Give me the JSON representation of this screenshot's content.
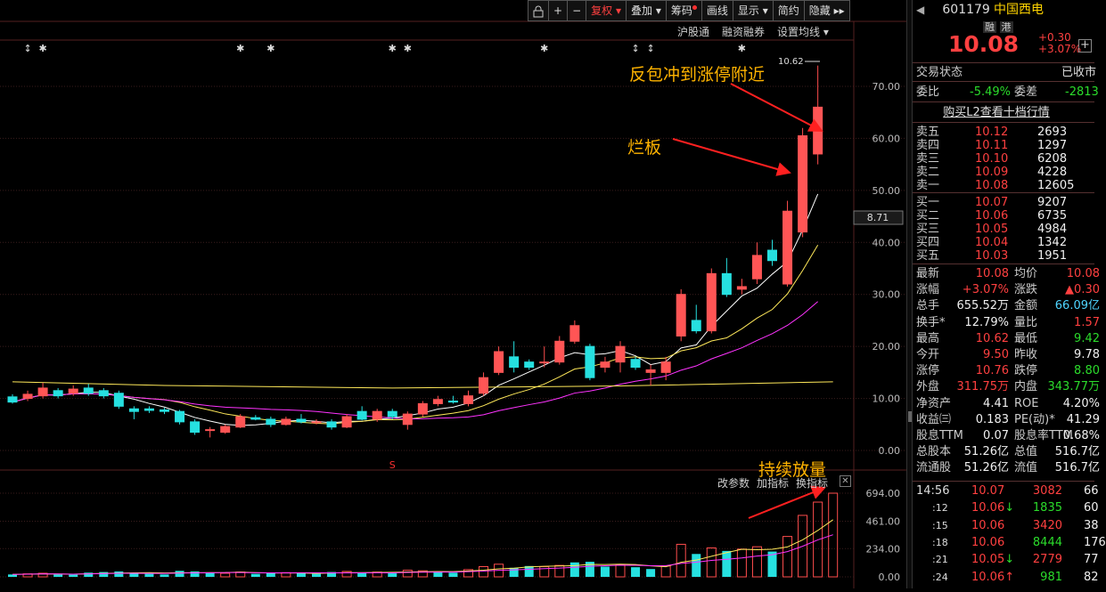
{
  "toolbar": {
    "buttons": [
      "复权",
      "叠加",
      "筹码",
      "画线",
      "显示",
      "简约",
      "隐藏"
    ],
    "active_button": "复权"
  },
  "subbar": [
    "沪股通",
    "融资融券",
    "设置均线"
  ],
  "price_axis": [
    "70.00",
    "60.00",
    "50.00",
    "40.00",
    "30.00",
    "20.00",
    "10.00",
    "0.00"
  ],
  "current_price_tag": "8.71",
  "high_label": "10.62",
  "volume_axis": [
    "694.00",
    "461.00",
    "234.00",
    "0.00"
  ],
  "indicator_bar": [
    "改参数",
    "加指标",
    "换指标"
  ],
  "annotations": {
    "limit_up": "反包冲到涨停附近",
    "board": "烂板",
    "volume": "持续放量"
  },
  "chart_data": {
    "type": "candlestick",
    "ylim": [
      0,
      75
    ],
    "candles": [
      {
        "o": 10.3,
        "c": 9.3,
        "h": 10.8,
        "l": 9.0
      },
      {
        "o": 10.0,
        "c": 10.8,
        "h": 11.5,
        "l": 9.5
      },
      {
        "o": 10.5,
        "c": 12.0,
        "h": 13.0,
        "l": 10.0
      },
      {
        "o": 11.5,
        "c": 10.5,
        "h": 12.0,
        "l": 10.0
      },
      {
        "o": 11.0,
        "c": 11.8,
        "h": 12.5,
        "l": 10.5
      },
      {
        "o": 12.0,
        "c": 11.0,
        "h": 12.8,
        "l": 10.5
      },
      {
        "o": 11.5,
        "c": 10.5,
        "h": 12.0,
        "l": 10.0
      },
      {
        "o": 11.0,
        "c": 8.5,
        "h": 11.5,
        "l": 8.0
      },
      {
        "o": 8.0,
        "c": 7.5,
        "h": 8.5,
        "l": 6.0
      },
      {
        "o": 8.0,
        "c": 7.7,
        "h": 8.5,
        "l": 7.2
      },
      {
        "o": 7.8,
        "c": 7.5,
        "h": 8.2,
        "l": 7.0
      },
      {
        "o": 7.5,
        "c": 5.5,
        "h": 7.8,
        "l": 5.0
      },
      {
        "o": 5.5,
        "c": 3.5,
        "h": 6.0,
        "l": 3.0
      },
      {
        "o": 4.0,
        "c": 4.0,
        "h": 4.5,
        "l": 2.5
      },
      {
        "o": 3.5,
        "c": 4.6,
        "h": 5.0,
        "l": 3.2
      },
      {
        "o": 4.5,
        "c": 6.5,
        "h": 7.0,
        "l": 4.3
      },
      {
        "o": 6.3,
        "c": 6.0,
        "h": 6.8,
        "l": 5.8
      },
      {
        "o": 6.0,
        "c": 5.0,
        "h": 6.5,
        "l": 4.5
      },
      {
        "o": 5.0,
        "c": 6.0,
        "h": 6.5,
        "l": 4.8
      },
      {
        "o": 6.0,
        "c": 5.5,
        "h": 7.0,
        "l": 5.2
      },
      {
        "o": 5.5,
        "c": 5.5,
        "h": 6.0,
        "l": 5.0
      },
      {
        "o": 5.5,
        "c": 4.5,
        "h": 6.0,
        "l": 4.0
      },
      {
        "o": 4.5,
        "c": 6.5,
        "h": 7.0,
        "l": 4.3
      },
      {
        "o": 7.5,
        "c": 6.0,
        "h": 8.5,
        "l": 5.8
      },
      {
        "o": 6.0,
        "c": 7.5,
        "h": 8.0,
        "l": 5.5
      },
      {
        "o": 7.5,
        "c": 6.5,
        "h": 8.0,
        "l": 6.0
      },
      {
        "o": 5.0,
        "c": 7.0,
        "h": 7.5,
        "l": 4.0
      },
      {
        "o": 7.0,
        "c": 9.0,
        "h": 9.5,
        "l": 6.5
      },
      {
        "o": 9.0,
        "c": 9.8,
        "h": 10.5,
        "l": 8.5
      },
      {
        "o": 9.5,
        "c": 9.3,
        "h": 10.5,
        "l": 9.0
      },
      {
        "o": 9.0,
        "c": 10.5,
        "h": 11.5,
        "l": 8.5
      },
      {
        "o": 11.0,
        "c": 14.0,
        "h": 15.0,
        "l": 10.5
      },
      {
        "o": 15.0,
        "c": 19.0,
        "h": 20.0,
        "l": 14.5
      },
      {
        "o": 18.0,
        "c": 16.0,
        "h": 21.0,
        "l": 15.0
      },
      {
        "o": 17.0,
        "c": 16.0,
        "h": 17.5,
        "l": 15.5
      },
      {
        "o": 17.0,
        "c": 17.0,
        "h": 20.0,
        "l": 16.0
      },
      {
        "o": 17.0,
        "c": 21.0,
        "h": 22.0,
        "l": 16.5
      },
      {
        "o": 21.0,
        "c": 24.0,
        "h": 25.0,
        "l": 20.5
      },
      {
        "o": 20.0,
        "c": 14.0,
        "h": 20.5,
        "l": 13.5
      },
      {
        "o": 16.0,
        "c": 17.0,
        "h": 18.0,
        "l": 15.0
      },
      {
        "o": 17.0,
        "c": 20.0,
        "h": 21.0,
        "l": 15.0
      },
      {
        "o": 17.5,
        "c": 16.0,
        "h": 18.0,
        "l": 15.5
      },
      {
        "o": 15.0,
        "c": 15.5,
        "h": 16.5,
        "l": 12.5
      },
      {
        "o": 15.0,
        "c": 17.0,
        "h": 18.0,
        "l": 13.5
      },
      {
        "o": 22.0,
        "c": 30.0,
        "h": 31.0,
        "l": 21.0
      },
      {
        "o": 25.0,
        "c": 23.0,
        "h": 28.0,
        "l": 22.5
      },
      {
        "o": 23.0,
        "c": 34.0,
        "h": 35.0,
        "l": 22.5
      },
      {
        "o": 34.0,
        "c": 30.0,
        "h": 37.0,
        "l": 29.5
      },
      {
        "o": 31.0,
        "c": 31.5,
        "h": 33.0,
        "l": 30.0
      },
      {
        "o": 33.0,
        "c": 37.5,
        "h": 40.0,
        "l": 32.0
      },
      {
        "o": 38.5,
        "c": 36.5,
        "h": 40.5,
        "l": 35.5
      },
      {
        "o": 32.0,
        "c": 46.0,
        "h": 48.0,
        "l": 31.5
      },
      {
        "o": 42.0,
        "c": 60.5,
        "h": 62.0,
        "l": 41.0
      },
      {
        "o": 57.0,
        "c": 66.0,
        "h": 74.0,
        "l": 55.0
      }
    ],
    "volumes": [
      {
        "v": 20,
        "up": false
      },
      {
        "v": 25,
        "up": true
      },
      {
        "v": 30,
        "up": true
      },
      {
        "v": 20,
        "up": false
      },
      {
        "v": 18,
        "up": false
      },
      {
        "v": 35,
        "up": false
      },
      {
        "v": 40,
        "up": false
      },
      {
        "v": 45,
        "up": false
      },
      {
        "v": 30,
        "up": false
      },
      {
        "v": 25,
        "up": false
      },
      {
        "v": 20,
        "up": false
      },
      {
        "v": 50,
        "up": false
      },
      {
        "v": 45,
        "up": false
      },
      {
        "v": 35,
        "up": false
      },
      {
        "v": 30,
        "up": true
      },
      {
        "v": 40,
        "up": true
      },
      {
        "v": 25,
        "up": false
      },
      {
        "v": 30,
        "up": false
      },
      {
        "v": 35,
        "up": true
      },
      {
        "v": 30,
        "up": false
      },
      {
        "v": 25,
        "up": false
      },
      {
        "v": 40,
        "up": false
      },
      {
        "v": 45,
        "up": true
      },
      {
        "v": 35,
        "up": false
      },
      {
        "v": 40,
        "up": true
      },
      {
        "v": 30,
        "up": false
      },
      {
        "v": 55,
        "up": true
      },
      {
        "v": 50,
        "up": true
      },
      {
        "v": 45,
        "up": false
      },
      {
        "v": 35,
        "up": false
      },
      {
        "v": 60,
        "up": true
      },
      {
        "v": 85,
        "up": true
      },
      {
        "v": 105,
        "up": true
      },
      {
        "v": 75,
        "up": false
      },
      {
        "v": 90,
        "up": false
      },
      {
        "v": 85,
        "up": true
      },
      {
        "v": 95,
        "up": true
      },
      {
        "v": 120,
        "up": false
      },
      {
        "v": 125,
        "up": false
      },
      {
        "v": 85,
        "up": false
      },
      {
        "v": 100,
        "up": true
      },
      {
        "v": 80,
        "up": false
      },
      {
        "v": 65,
        "up": false
      },
      {
        "v": 90,
        "up": true
      },
      {
        "v": 270,
        "up": true
      },
      {
        "v": 190,
        "up": false
      },
      {
        "v": 240,
        "up": true
      },
      {
        "v": 215,
        "up": false
      },
      {
        "v": 230,
        "up": true
      },
      {
        "v": 250,
        "up": true
      },
      {
        "v": 210,
        "up": false
      },
      {
        "v": 335,
        "up": true
      },
      {
        "v": 510,
        "up": true
      },
      {
        "v": 620,
        "up": true
      },
      {
        "v": 694,
        "up": true
      }
    ],
    "volume_ylim": [
      0,
      720
    ]
  },
  "quote": {
    "code": "601179",
    "name": "中国西电",
    "tag_margin": "融",
    "tag_hk": "港",
    "price": "10.08",
    "change": "+0.30",
    "change_pct": "+3.07%",
    "status_label": "交易状态",
    "status_value": "已收市",
    "weibi_label": "委比",
    "weibi_value": "-5.49%",
    "weicha_label": "委差",
    "weicha_value": "-2813",
    "l2_link": "购买L2查看十档行情",
    "asks": [
      {
        "label": "卖五",
        "price": "10.12",
        "vol": "2693"
      },
      {
        "label": "卖四",
        "price": "10.11",
        "vol": "1297"
      },
      {
        "label": "卖三",
        "price": "10.10",
        "vol": "6208"
      },
      {
        "label": "卖二",
        "price": "10.09",
        "vol": "4228"
      },
      {
        "label": "卖一",
        "price": "10.08",
        "vol": "12605"
      }
    ],
    "bids": [
      {
        "label": "买一",
        "price": "10.07",
        "vol": "9207"
      },
      {
        "label": "买二",
        "price": "10.06",
        "vol": "6735"
      },
      {
        "label": "买三",
        "price": "10.05",
        "vol": "4984"
      },
      {
        "label": "买四",
        "price": "10.04",
        "vol": "1342"
      },
      {
        "label": "买五",
        "price": "10.03",
        "vol": "1951"
      }
    ],
    "stats": [
      {
        "l1": "最新",
        "v1": "10.08",
        "c1": "red",
        "l2": "均价",
        "v2": "10.08",
        "c2": "red"
      },
      {
        "l1": "涨幅",
        "v1": "+3.07%",
        "c1": "red",
        "l2": "涨跌",
        "v2": "▲0.30",
        "c2": "red"
      },
      {
        "l1": "总手",
        "v1": "655.52万",
        "c1": "white",
        "l2": "金额",
        "v2": "66.09亿",
        "c2": "cyan"
      },
      {
        "l1": "换手*",
        "v1": "12.79%",
        "c1": "white",
        "l2": "量比",
        "v2": "1.57",
        "c2": "red"
      },
      {
        "l1": "最高",
        "v1": "10.62",
        "c1": "red",
        "l2": "最低",
        "v2": "9.42",
        "c2": "green"
      },
      {
        "l1": "今开",
        "v1": "9.50",
        "c1": "red",
        "l2": "昨收",
        "v2": "9.78",
        "c2": "white"
      },
      {
        "l1": "涨停",
        "v1": "10.76",
        "c1": "red",
        "l2": "跌停",
        "v2": "8.80",
        "c2": "green"
      },
      {
        "l1": "外盘",
        "v1": "311.75万",
        "c1": "red",
        "l2": "内盘",
        "v2": "343.77万",
        "c2": "green"
      },
      {
        "l1": "净资产",
        "v1": "4.41",
        "c1": "white",
        "l2": "ROE",
        "v2": "4.20%",
        "c2": "white"
      },
      {
        "l1": "收益㈢",
        "v1": "0.183",
        "c1": "white",
        "l2": "PE(动)*",
        "v2": "41.29",
        "c2": "white"
      },
      {
        "l1": "股息TTM",
        "v1": "0.07",
        "c1": "white",
        "l2": "股息率TTM",
        "v2": "0.68%",
        "c2": "white"
      },
      {
        "l1": "总股本",
        "v1": "51.26亿",
        "c1": "white",
        "l2": "总值",
        "v2": "516.7亿",
        "c2": "white"
      },
      {
        "l1": "流通股",
        "v1": "51.26亿",
        "c1": "white",
        "l2": "流值",
        "v2": "516.7亿",
        "c2": "white"
      }
    ],
    "ticks": [
      {
        "time": "14:56",
        "price": "10.07",
        "arrow": "",
        "vol": "3082",
        "n": "66"
      },
      {
        "time": ":12",
        "price": "10.06",
        "arrow": "↓",
        "vol": "1835",
        "n": "60"
      },
      {
        "time": ":15",
        "price": "10.06",
        "arrow": "",
        "vol": "3420",
        "n": "38"
      },
      {
        "time": ":18",
        "price": "10.06",
        "arrow": "",
        "vol": "8444",
        "n": "176"
      },
      {
        "time": ":21",
        "price": "10.05",
        "arrow": "↓",
        "vol": "2779",
        "n": "77"
      },
      {
        "time": ":24",
        "price": "10.06",
        "arrow": "↑",
        "vol": "981",
        "n": "82"
      }
    ]
  }
}
